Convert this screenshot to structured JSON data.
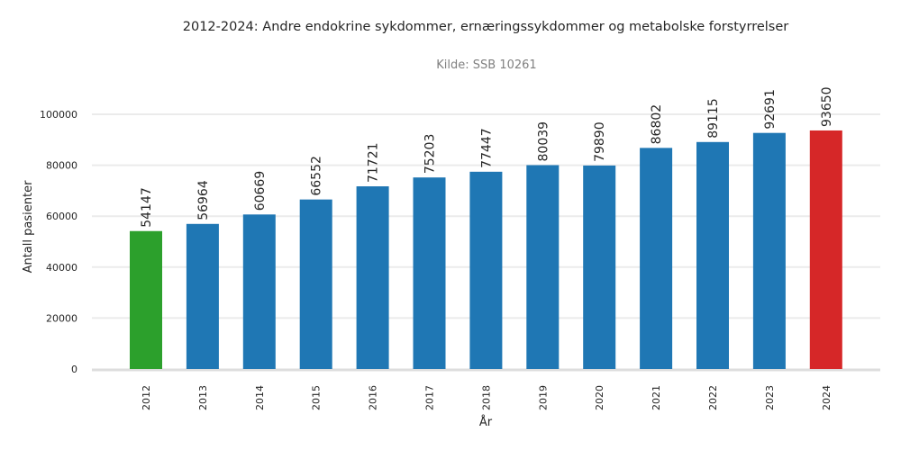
{
  "chart_data": {
    "type": "bar",
    "title": "2012-2024: Andre endokrine sykdommer, ernæringssykdommer og metabolske forstyrrelser",
    "subtitle": "Kilde: SSB 10261",
    "xlabel": "År",
    "ylabel": "Antall pasienter",
    "ylim": [
      0,
      100000
    ],
    "yticks": [
      0,
      20000,
      40000,
      60000,
      80000,
      100000
    ],
    "grid": true,
    "categories": [
      "2012",
      "2013",
      "2014",
      "2015",
      "2016",
      "2017",
      "2018",
      "2019",
      "2020",
      "2021",
      "2022",
      "2023",
      "2024"
    ],
    "values": [
      54147,
      56964,
      60669,
      66552,
      71721,
      75203,
      77447,
      80039,
      79890,
      86802,
      89115,
      92691,
      93650
    ],
    "colors": {
      "default": "#1f77b4",
      "first": "#2ca02c",
      "last": "#d62728",
      "grid": "#ebebeb",
      "axis": "#dddddd"
    }
  }
}
